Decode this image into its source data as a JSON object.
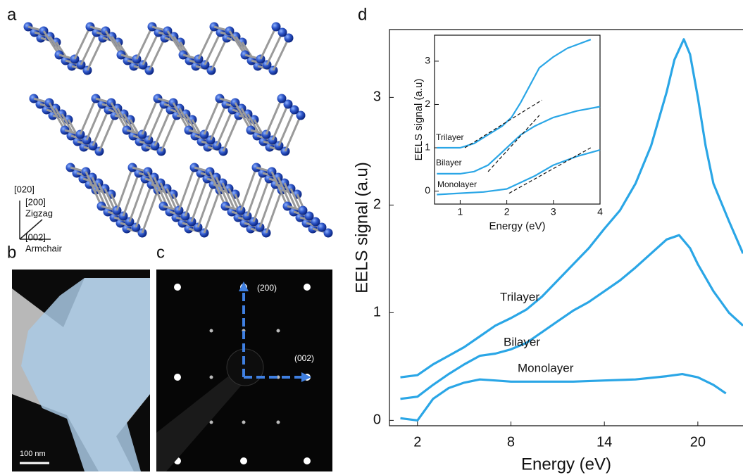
{
  "figure": {
    "a": {
      "label": "a",
      "directions": [
        "[020]",
        "[200]",
        "Zigzag",
        "[002]",
        "Armchair"
      ]
    },
    "b": {
      "label": "b",
      "scale_bar": "100 nm"
    },
    "c": {
      "label": "c",
      "spots": [
        "(200)",
        "(002)"
      ]
    }
  },
  "chart_data": [
    {
      "type": "line",
      "panel_label": "d",
      "x_label": "Energy (eV)",
      "y_label": "EELS signal (a.u)",
      "xlim": [
        0.2,
        22.9
      ],
      "ylim": [
        -0.05,
        3.63
      ],
      "xticks": [
        2,
        8,
        14,
        20
      ],
      "yticks": [
        0,
        1,
        2,
        3
      ],
      "series": [
        {
          "name": "Trilayer",
          "color": "#2aa6e6",
          "x": [
            0.9,
            2,
            3,
            4,
            5,
            6,
            7,
            8,
            9,
            10,
            11,
            12,
            13,
            14,
            15,
            16,
            17,
            18,
            18.5,
            19.1,
            19.5,
            20,
            20.5,
            21,
            22,
            22.9
          ],
          "values": [
            0.4,
            0.42,
            0.52,
            0.6,
            0.68,
            0.78,
            0.88,
            0.95,
            1.03,
            1.15,
            1.3,
            1.45,
            1.6,
            1.78,
            1.95,
            2.2,
            2.55,
            3.05,
            3.35,
            3.54,
            3.4,
            3.0,
            2.55,
            2.2,
            1.85,
            1.55
          ]
        },
        {
          "name": "Bilayer",
          "color": "#2aa6e6",
          "x": [
            0.9,
            2,
            3,
            4,
            5,
            6,
            7,
            8,
            9,
            10,
            11,
            12,
            13,
            14,
            15,
            16,
            17,
            18,
            18.8,
            19.5,
            20,
            21,
            22,
            22.9
          ],
          "values": [
            0.2,
            0.22,
            0.33,
            0.43,
            0.52,
            0.6,
            0.62,
            0.66,
            0.72,
            0.82,
            0.92,
            1.02,
            1.1,
            1.2,
            1.3,
            1.42,
            1.55,
            1.68,
            1.72,
            1.6,
            1.45,
            1.2,
            1.0,
            0.88
          ]
        },
        {
          "name": "Monolayer",
          "color": "#2aa6e6",
          "x": [
            0.9,
            2,
            2.5,
            3,
            4,
            5,
            6,
            7,
            8,
            10,
            12,
            14,
            16,
            18,
            19,
            20,
            21,
            21.8
          ],
          "values": [
            0.02,
            0.0,
            0.1,
            0.2,
            0.3,
            0.35,
            0.38,
            0.37,
            0.36,
            0.36,
            0.36,
            0.37,
            0.38,
            0.41,
            0.43,
            0.4,
            0.33,
            0.25
          ]
        }
      ]
    },
    {
      "type": "line",
      "x_label": "Energy (eV)",
      "y_label": "EELS signal (a.u)",
      "xlim": [
        0.45,
        4.0
      ],
      "ylim": [
        -0.3,
        3.6
      ],
      "xticks": [
        1,
        2,
        3,
        4
      ],
      "yticks": [
        0,
        1,
        2,
        3
      ],
      "series": [
        {
          "name": "Trilayer",
          "color": "#2aa6e6",
          "x": [
            0.5,
            1,
            1.3,
            1.6,
            1.9,
            2.1,
            2.3,
            2.5,
            2.7,
            3,
            3.3,
            3.8
          ],
          "values": [
            1.0,
            1.0,
            1.1,
            1.3,
            1.5,
            1.7,
            2.05,
            2.45,
            2.85,
            3.1,
            3.3,
            3.5
          ]
        },
        {
          "name": "Bilayer",
          "color": "#2aa6e6",
          "x": [
            0.5,
            1,
            1.3,
            1.6,
            1.9,
            2.1,
            2.3,
            2.6,
            3,
            3.5,
            4
          ],
          "values": [
            0.4,
            0.4,
            0.45,
            0.6,
            0.9,
            1.1,
            1.3,
            1.5,
            1.7,
            1.85,
            1.95
          ]
        },
        {
          "name": "Monolayer",
          "color": "#2aa6e6",
          "x": [
            0.5,
            1,
            1.5,
            2,
            2.3,
            2.6,
            3,
            3.5,
            4
          ],
          "values": [
            -0.08,
            -0.05,
            -0.02,
            0.05,
            0.2,
            0.35,
            0.6,
            0.8,
            0.95
          ]
        }
      ],
      "fits": [
        {
          "x": [
            1.1,
            2.75
          ],
          "values": [
            1.0,
            2.1
          ]
        },
        {
          "x": [
            1.6,
            2.7
          ],
          "values": [
            0.45,
            1.75
          ]
        },
        {
          "x": [
            2.05,
            3.8
          ],
          "values": [
            -0.05,
            1.0
          ]
        }
      ]
    }
  ]
}
